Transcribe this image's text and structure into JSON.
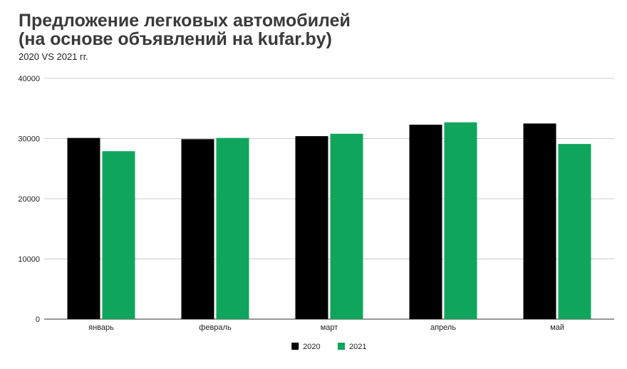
{
  "chart_data": {
    "type": "bar",
    "title": "Предложение легковых автомобилей",
    "title_line2": "(на основе объявлений на kufar.by)",
    "subtitle": "2020 VS 2021 гг.",
    "xlabel": "",
    "ylabel": "",
    "ylim": [
      0,
      40000
    ],
    "yticks": [
      "0",
      "10000",
      "20000",
      "30000",
      "40000"
    ],
    "grid": true,
    "legend_position": "bottom",
    "categories": [
      "январь",
      "февраль",
      "март",
      "апрель",
      "май"
    ],
    "series": [
      {
        "name": "2020",
        "color": "#000000",
        "values": [
          30100,
          29900,
          30400,
          32300,
          32500
        ]
      },
      {
        "name": "2021",
        "color": "#0fa55c",
        "values": [
          27900,
          30100,
          30800,
          32700,
          29100
        ]
      }
    ]
  }
}
